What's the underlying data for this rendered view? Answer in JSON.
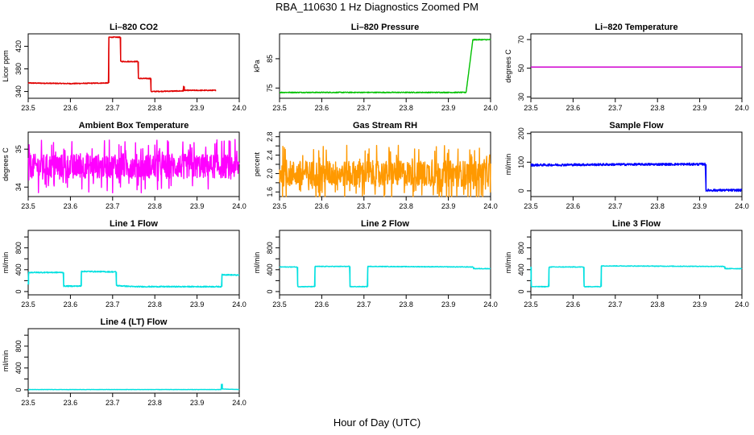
{
  "title": "RBA_110630  1 Hz Diagnostics Zoomed PM",
  "x_axis_title": "Hour of Day (UTC)",
  "chart_data": [
    {
      "type": "line",
      "title": "Li–820 CO2",
      "ylabel": "Licor ppm",
      "color": "#e00000",
      "xlim": [
        23.5,
        24.0
      ],
      "xticks": [
        23.5,
        23.6,
        23.7,
        23.8,
        23.9,
        24.0
      ],
      "ylim": [
        328,
        442
      ],
      "yticks": [
        340,
        380,
        420
      ],
      "noise": 0.8,
      "points": [
        [
          23.5,
          355
        ],
        [
          23.6,
          354
        ],
        [
          23.685,
          355
        ],
        [
          23.69,
          355
        ],
        [
          23.691,
          436
        ],
        [
          23.718,
          436
        ],
        [
          23.719,
          393
        ],
        [
          23.76,
          393
        ],
        [
          23.761,
          363
        ],
        [
          23.79,
          363
        ],
        [
          23.791,
          340
        ],
        [
          23.867,
          341
        ],
        [
          23.868,
          349
        ],
        [
          23.87,
          342
        ],
        [
          23.945,
          342
        ]
      ]
    },
    {
      "type": "line",
      "title": "Li–820 Pressure",
      "ylabel": "kPa",
      "color": "#00c000",
      "xlim": [
        23.5,
        24.0
      ],
      "xticks": [
        23.5,
        23.6,
        23.7,
        23.8,
        23.9,
        24.0
      ],
      "ylim": [
        71.5,
        93.5
      ],
      "yticks": [
        75,
        85
      ],
      "noise": 0.15,
      "points": [
        [
          23.5,
          73.5
        ],
        [
          23.8,
          73.5
        ],
        [
          23.942,
          73.5
        ],
        [
          23.958,
          91.5
        ],
        [
          24.0,
          91.5
        ]
      ]
    },
    {
      "type": "line",
      "title": "Li–820 Temperature",
      "ylabel": "degrees C",
      "color": "#d000d0",
      "xlim": [
        23.5,
        24.0
      ],
      "xticks": [
        23.5,
        23.6,
        23.7,
        23.8,
        23.9,
        24.0
      ],
      "ylim": [
        29,
        74
      ],
      "yticks": [
        30,
        50,
        70
      ],
      "noise": 0,
      "points": [
        [
          23.5,
          50.8
        ],
        [
          24.0,
          50.8
        ]
      ]
    },
    {
      "type": "line",
      "title": "Ambient Box Temperature",
      "ylabel": "degrees C",
      "color": "#ff00ff",
      "xlim": [
        23.5,
        24.0
      ],
      "xticks": [
        23.5,
        23.6,
        23.7,
        23.8,
        23.9,
        24.0
      ],
      "ylim": [
        33.75,
        35.45
      ],
      "yticks": [
        34.0,
        35.0
      ],
      "noise": 0.32,
      "noise_mode": "spiky",
      "points": [
        [
          23.5,
          34.55
        ],
        [
          24.0,
          34.55
        ]
      ]
    },
    {
      "type": "line",
      "title": "Gas Stream RH",
      "ylabel": "percent",
      "color": "#ff9900",
      "xlim": [
        23.5,
        24.0
      ],
      "xticks": [
        23.5,
        23.6,
        23.7,
        23.8,
        23.9,
        24.0
      ],
      "ylim": [
        1.5,
        2.9
      ],
      "yticks": [
        1.6,
        2.0,
        2.4,
        2.8
      ],
      "yticks_minor": [
        1.8,
        2.2,
        2.6
      ],
      "noise": 0.28,
      "noise_mode": "spiky",
      "points": [
        [
          23.5,
          2.0
        ],
        [
          24.0,
          2.0
        ]
      ]
    },
    {
      "type": "line",
      "title": "Sample Flow",
      "ylabel": "ml/min",
      "color": "#0000ff",
      "xlim": [
        23.5,
        24.0
      ],
      "xticks": [
        23.5,
        23.6,
        23.7,
        23.8,
        23.9,
        24.0
      ],
      "ylim": [
        -20,
        205
      ],
      "yticks": [
        0,
        100,
        200
      ],
      "noise": 4,
      "points": [
        [
          23.5,
          90
        ],
        [
          23.7,
          92
        ],
        [
          23.913,
          93
        ],
        [
          23.915,
          2
        ],
        [
          24.0,
          2
        ]
      ]
    },
    {
      "type": "line",
      "title": "Line 1 Flow",
      "ylabel": "ml/min",
      "color": "#00e0e0",
      "xlim": [
        23.5,
        24.0
      ],
      "xticks": [
        23.5,
        23.6,
        23.7,
        23.8,
        23.9,
        24.0
      ],
      "ylim": [
        -60,
        1120
      ],
      "yticks": [
        0,
        400,
        800
      ],
      "yticks_minor": [
        200,
        600,
        1000
      ],
      "noise": 10,
      "points": [
        [
          23.5,
          130
        ],
        [
          23.501,
          350
        ],
        [
          23.583,
          350
        ],
        [
          23.584,
          100
        ],
        [
          23.625,
          100
        ],
        [
          23.626,
          370
        ],
        [
          23.708,
          360
        ],
        [
          23.709,
          110
        ],
        [
          23.75,
          90
        ],
        [
          23.958,
          90
        ],
        [
          23.959,
          310
        ],
        [
          24.0,
          300
        ]
      ]
    },
    {
      "type": "line",
      "title": "Line 2 Flow",
      "ylabel": "ml/min",
      "color": "#00e0e0",
      "xlim": [
        23.5,
        24.0
      ],
      "xticks": [
        23.5,
        23.6,
        23.7,
        23.8,
        23.9,
        24.0
      ],
      "ylim": [
        -60,
        1120
      ],
      "yticks": [
        0,
        400,
        800
      ],
      "yticks_minor": [
        200,
        600,
        1000
      ],
      "noise": 6,
      "points": [
        [
          23.5,
          450
        ],
        [
          23.542,
          450
        ],
        [
          23.543,
          90
        ],
        [
          23.583,
          90
        ],
        [
          23.584,
          460
        ],
        [
          23.666,
          460
        ],
        [
          23.667,
          90
        ],
        [
          23.708,
          90
        ],
        [
          23.709,
          460
        ],
        [
          23.958,
          450
        ],
        [
          23.96,
          420
        ],
        [
          24.0,
          420
        ]
      ]
    },
    {
      "type": "line",
      "title": "Line 3 Flow",
      "ylabel": "ml/min",
      "color": "#00e0e0",
      "xlim": [
        23.5,
        24.0
      ],
      "xticks": [
        23.5,
        23.6,
        23.7,
        23.8,
        23.9,
        24.0
      ],
      "ylim": [
        -60,
        1120
      ],
      "yticks": [
        0,
        400,
        800
      ],
      "yticks_minor": [
        200,
        600,
        1000
      ],
      "noise": 6,
      "points": [
        [
          23.5,
          450
        ],
        [
          23.501,
          90
        ],
        [
          23.542,
          90
        ],
        [
          23.543,
          450
        ],
        [
          23.625,
          450
        ],
        [
          23.626,
          90
        ],
        [
          23.666,
          90
        ],
        [
          23.667,
          470
        ],
        [
          23.958,
          460
        ],
        [
          23.96,
          420
        ],
        [
          24.0,
          420
        ]
      ]
    },
    {
      "type": "line",
      "title": "Line 4 (LT) Flow",
      "ylabel": "ml/min",
      "color": "#00e0e0",
      "xlim": [
        23.5,
        24.0
      ],
      "xticks": [
        23.5,
        23.6,
        23.7,
        23.8,
        23.9,
        24.0
      ],
      "ylim": [
        -60,
        1120
      ],
      "yticks": [
        0,
        400,
        800
      ],
      "yticks_minor": [
        200,
        600,
        1000
      ],
      "noise": 3,
      "points": [
        [
          23.5,
          5
        ],
        [
          23.957,
          5
        ],
        [
          23.958,
          110
        ],
        [
          23.96,
          15
        ],
        [
          24.0,
          5
        ]
      ]
    }
  ]
}
